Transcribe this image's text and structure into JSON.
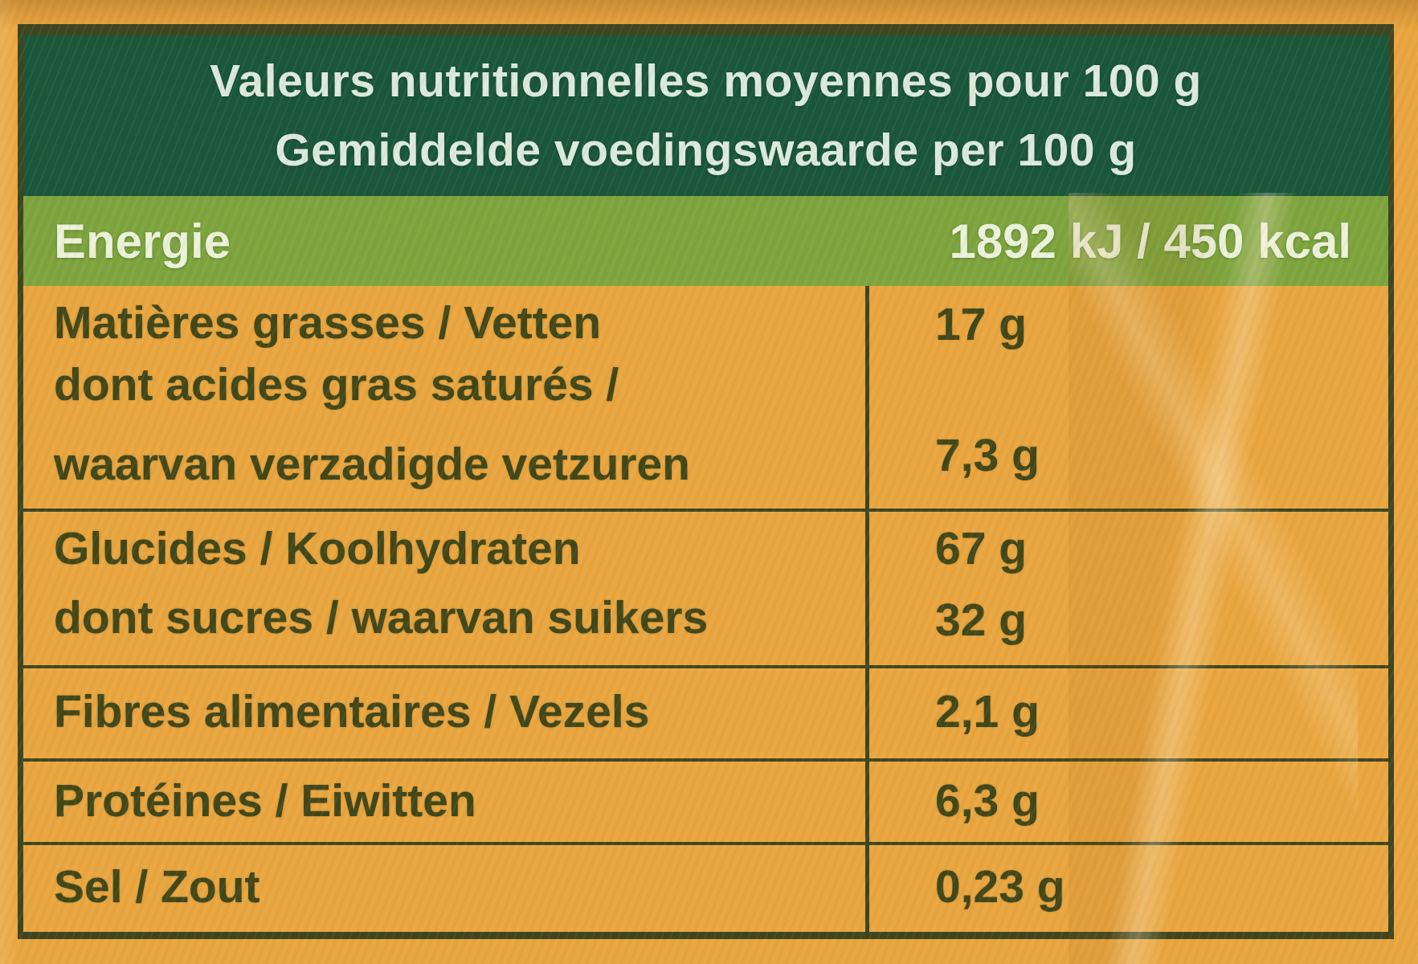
{
  "header": {
    "title_fr": "Valeurs nutritionnelles moyennes pour 100 g",
    "title_nl": "Gemiddelde voedingswaarde per 100 g"
  },
  "energy": {
    "label": "Energie",
    "value": "1892 kJ / 450 kcal"
  },
  "table": {
    "rows": [
      {
        "lines": [
          "Matières grasses / Vetten",
          "dont acides gras saturés /",
          "waarvan verzadigde vetzuren"
        ],
        "values": [
          "17 g",
          "7,3 g"
        ]
      },
      {
        "lines": [
          "Glucides / Koolhydraten",
          "dont sucres / waarvan suikers"
        ],
        "values": [
          "67 g",
          "32 g"
        ]
      },
      {
        "lines": [
          "Fibres alimentaires / Vezels"
        ],
        "values": [
          "2,1 g"
        ]
      },
      {
        "lines": [
          "Protéines / Eiwitten"
        ],
        "values": [
          "6,3 g"
        ]
      },
      {
        "lines": [
          "Sel / Zout"
        ],
        "values": [
          "0,23 g"
        ]
      }
    ]
  },
  "colors": {
    "background_orange": "#e9a640",
    "header_green": "#1a5739",
    "energy_green": "#7ea43e",
    "table_line_olive": "#3e4620",
    "text_olive": "#414719",
    "header_text": "#dcead9",
    "energy_text": "#ebf2da"
  }
}
